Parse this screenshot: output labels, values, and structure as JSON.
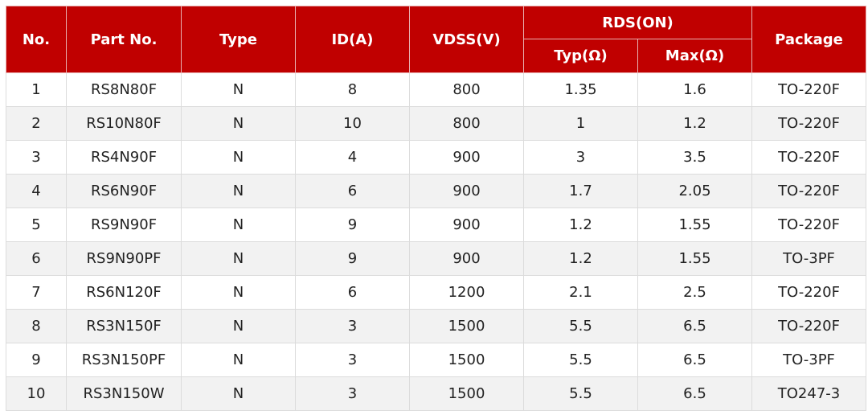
{
  "header": {
    "no": "No.",
    "part_no": "Part No.",
    "type": "Type",
    "id": "ID(A)",
    "vdss": "VDSS(V)",
    "rds_on": "RDS(ON)",
    "typ": "Typ(Ω)",
    "max": "Max(Ω)",
    "package": "Package"
  },
  "colors": {
    "header_bg": "#c00000",
    "alt_row": "#f2f2f2"
  },
  "rows": [
    [
      "1",
      "RS8N80F",
      "N",
      "8",
      "800",
      "1.35",
      "1.6",
      "TO-220F"
    ],
    [
      "2",
      "RS10N80F",
      "N",
      "10",
      "800",
      "1",
      "1.2",
      "TO-220F"
    ],
    [
      "3",
      "RS4N90F",
      "N",
      "4",
      "900",
      "3",
      "3.5",
      "TO-220F"
    ],
    [
      "4",
      "RS6N90F",
      "N",
      "6",
      "900",
      "1.7",
      "2.05",
      "TO-220F"
    ],
    [
      "5",
      "RS9N90F",
      "N",
      "9",
      "900",
      "1.2",
      "1.55",
      "TO-220F"
    ],
    [
      "6",
      "RS9N90PF",
      "N",
      "9",
      "900",
      "1.2",
      "1.55",
      "TO-3PF"
    ],
    [
      "7",
      "RS6N120F",
      "N",
      "6",
      "1200",
      "2.1",
      "2.5",
      "TO-220F"
    ],
    [
      "8",
      "RS3N150F",
      "N",
      "3",
      "1500",
      "5.5",
      "6.5",
      "TO-220F"
    ],
    [
      "9",
      "RS3N150PF",
      "N",
      "3",
      "1500",
      "5.5",
      "6.5",
      "TO-3PF"
    ],
    [
      "10",
      "RS3N150W",
      "N",
      "3",
      "1500",
      "5.5",
      "6.5",
      "TO247-3"
    ]
  ]
}
